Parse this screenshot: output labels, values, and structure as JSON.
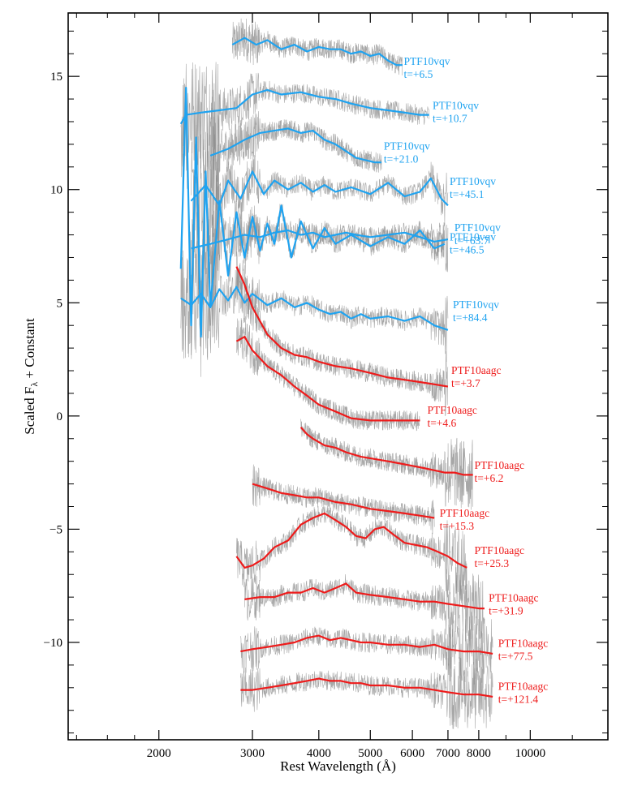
{
  "colors": {
    "blue": "#1fa3f0",
    "red": "#ee1b1b",
    "raw": "#8a8a8a",
    "axes": "#000000"
  },
  "chart_data": {
    "type": "line",
    "title": "",
    "xlabel": "Rest Wavelength (Å)",
    "ylabel": "Scaled F",
    "ylabel_subscript": "λ",
    "ylabel_suffix": " + Constant",
    "xscale": "log",
    "xlim": [
      1350,
      14000
    ],
    "ylim": [
      -14.3,
      17.8
    ],
    "grid": false,
    "legend": "none",
    "x_ticks_major": [
      {
        "value": 2000,
        "label": "2000"
      },
      {
        "value": 3000,
        "label": "3000"
      },
      {
        "value": 4000,
        "label": "4000"
      },
      {
        "value": 5000,
        "label": "5000"
      },
      {
        "value": 6000,
        "label": "6000"
      },
      {
        "value": 7000,
        "label": "7000"
      },
      {
        "value": 8000,
        "label": "8000"
      },
      {
        "value": 10000,
        "label": "10000"
      }
    ],
    "x_ticks_minor": [
      1400,
      1600,
      1800,
      9000,
      12000,
      14000
    ],
    "y_ticks_major": [
      {
        "value": -10,
        "label": "−10"
      },
      {
        "value": -5,
        "label": "−5"
      },
      {
        "value": 0,
        "label": "0"
      },
      {
        "value": 5,
        "label": "5"
      },
      {
        "value": 10,
        "label": "10"
      },
      {
        "value": 15,
        "label": "15"
      }
    ],
    "y_minor_step": 1,
    "series": [
      {
        "color_key": "blue",
        "label_name": "PTF10vqv",
        "label_epoch": "t=+6.5",
        "label_at": [
          5780,
          15.4
        ],
        "x": [
          2750,
          2900,
          3050,
          3200,
          3400,
          3600,
          3800,
          4000,
          4200,
          4400,
          4600,
          4800,
          5000,
          5200,
          5400,
          5600,
          5750
        ],
        "y": [
          16.4,
          16.7,
          16.4,
          16.6,
          16.2,
          16.4,
          16.1,
          16.3,
          16.2,
          16.2,
          16.0,
          16.1,
          15.9,
          16.0,
          15.7,
          15.5,
          15.5
        ]
      },
      {
        "color_key": "blue",
        "label_name": "PTF10vqv",
        "label_epoch": "t=+10.7",
        "label_at": [
          6550,
          13.45
        ],
        "x": [
          2200,
          2250,
          2400,
          2600,
          2800,
          3000,
          3200,
          3400,
          3700,
          4000,
          4300,
          4600,
          5000,
          5400,
          5800,
          6200,
          6450
        ],
        "y": [
          12.9,
          13.3,
          13.4,
          13.5,
          13.6,
          14.2,
          14.4,
          14.2,
          14.3,
          14.1,
          14.0,
          13.8,
          13.6,
          13.5,
          13.4,
          13.3,
          13.3
        ]
      },
      {
        "color_key": "blue",
        "label_name": "PTF10vqv",
        "label_epoch": "t=+21.0",
        "label_at": [
          5300,
          11.65
        ],
        "x": [
          2500,
          2700,
          2900,
          3100,
          3300,
          3500,
          3700,
          3900,
          4100,
          4300,
          4500,
          4700,
          4900,
          5100,
          5250
        ],
        "y": [
          11.5,
          11.8,
          12.2,
          12.5,
          12.6,
          12.7,
          12.5,
          12.6,
          12.2,
          12.0,
          11.7,
          11.4,
          11.3,
          11.2,
          11.2
        ]
      },
      {
        "color_key": "blue",
        "label_name": "PTF10vqv",
        "label_epoch": "t=+45.1",
        "label_at": [
          7050,
          10.1
        ],
        "x": [
          2300,
          2450,
          2600,
          2700,
          2850,
          3000,
          3150,
          3300,
          3500,
          3700,
          3900,
          4100,
          4300,
          4600,
          5000,
          5400,
          5800,
          6200,
          6500,
          6800,
          7000
        ],
        "y": [
          9.5,
          10.2,
          9.3,
          10.4,
          9.6,
          10.8,
          9.8,
          10.4,
          10.0,
          10.3,
          9.9,
          10.2,
          9.9,
          10.1,
          9.8,
          10.3,
          9.7,
          9.9,
          10.5,
          9.6,
          9.3
        ]
      },
      {
        "color_key": "blue",
        "label_name": "PTF10vqv",
        "label_epoch": "t=+63.7",
        "label_at": [
          7200,
          8.05
        ],
        "x": [
          2300,
          2500,
          2700,
          2900,
          3100,
          3300,
          3500,
          3700,
          3900,
          4100,
          4300,
          4500,
          4700,
          5000,
          5400,
          5800,
          6200,
          6600,
          7000
        ],
        "y": [
          7.4,
          7.6,
          7.8,
          8.0,
          7.9,
          8.1,
          8.2,
          8.0,
          8.1,
          7.9,
          8.0,
          8.1,
          8.0,
          7.9,
          8.0,
          8.1,
          7.9,
          7.7,
          7.8
        ]
      },
      {
        "color_key": "blue",
        "label_name": "PTF10vqv",
        "label_epoch": "t=+46.5",
        "label_at": [
          7050,
          7.65
        ],
        "x": [
          2200,
          2250,
          2300,
          2350,
          2400,
          2450,
          2500,
          2600,
          2700,
          2800,
          2900,
          3000,
          3100,
          3200,
          3300,
          3400,
          3550,
          3700,
          3900,
          4100,
          4300,
          4600,
          5000,
          5400,
          5800,
          6200,
          6600,
          6900
        ],
        "y": [
          6.5,
          14.5,
          4.0,
          12.3,
          3.5,
          10.8,
          4.8,
          9.5,
          6.2,
          9.0,
          7.0,
          8.8,
          7.3,
          8.5,
          7.6,
          9.3,
          7.0,
          8.6,
          7.4,
          8.3,
          7.6,
          8.0,
          7.5,
          7.9,
          7.6,
          8.2,
          7.4,
          7.6
        ]
      },
      {
        "color_key": "blue",
        "label_name": "PTF10vqv",
        "label_epoch": "t=+84.4",
        "label_at": [
          7150,
          4.65
        ],
        "x": [
          2200,
          2300,
          2400,
          2500,
          2600,
          2700,
          2800,
          2900,
          3000,
          3200,
          3400,
          3600,
          3800,
          4000,
          4200,
          4400,
          4600,
          4800,
          5000,
          5400,
          5800,
          6200,
          6600,
          7000
        ],
        "y": [
          5.2,
          4.9,
          5.4,
          4.8,
          5.6,
          5.1,
          5.7,
          5.0,
          5.4,
          4.9,
          5.2,
          4.8,
          5.0,
          4.7,
          4.5,
          4.6,
          4.3,
          4.5,
          4.3,
          4.4,
          4.2,
          4.4,
          4.0,
          3.8
        ]
      },
      {
        "color_key": "red",
        "label_name": "PTF10aagc",
        "label_epoch": "t=+3.7",
        "label_at": [
          7100,
          1.75
        ],
        "x": [
          2800,
          2900,
          3000,
          3200,
          3400,
          3600,
          3800,
          4000,
          4300,
          4600,
          5000,
          5400,
          5800,
          6200,
          6600,
          7000
        ],
        "y": [
          6.6,
          5.8,
          4.8,
          3.6,
          3.0,
          2.7,
          2.6,
          2.4,
          2.2,
          2.1,
          1.9,
          1.7,
          1.6,
          1.5,
          1.4,
          1.3
        ]
      },
      {
        "color_key": "red",
        "label_name": "PTF10aagc",
        "label_epoch": "t=+4.6",
        "label_at": [
          6400,
          0.0
        ],
        "x": [
          2800,
          2900,
          3000,
          3200,
          3400,
          3600,
          3800,
          4000,
          4300,
          4600,
          5000,
          5400,
          5800,
          6200
        ],
        "y": [
          3.3,
          3.5,
          2.9,
          2.2,
          1.8,
          1.3,
          0.9,
          0.5,
          0.2,
          -0.1,
          -0.2,
          -0.2,
          -0.2,
          -0.2
        ]
      },
      {
        "color_key": "red",
        "label_name": "PTF10aagc",
        "label_epoch": "t=+6.2",
        "label_at": [
          7850,
          -2.45
        ],
        "x": [
          3700,
          3800,
          3900,
          4100,
          4300,
          4500,
          4800,
          5100,
          5400,
          5700,
          6000,
          6300,
          6600,
          6900,
          7200,
          7500,
          7800
        ],
        "y": [
          -0.5,
          -0.8,
          -1.0,
          -1.3,
          -1.4,
          -1.6,
          -1.8,
          -1.9,
          -2.0,
          -2.1,
          -2.2,
          -2.3,
          -2.4,
          -2.5,
          -2.5,
          -2.6,
          -2.6
        ]
      },
      {
        "color_key": "red",
        "label_name": "PTF10aagc",
        "label_epoch": "t=+15.3",
        "label_at": [
          6750,
          -4.55
        ],
        "x": [
          3000,
          3200,
          3400,
          3600,
          3800,
          4000,
          4300,
          4600,
          5000,
          5400,
          5800,
          6200,
          6600
        ],
        "y": [
          -3.0,
          -3.2,
          -3.4,
          -3.5,
          -3.6,
          -3.6,
          -3.8,
          -3.9,
          -4.1,
          -4.2,
          -4.3,
          -4.4,
          -4.5
        ]
      },
      {
        "color_key": "red",
        "label_name": "PTF10aagc",
        "label_epoch": "t=+25.3",
        "label_at": [
          7850,
          -6.2
        ],
        "x": [
          2800,
          2900,
          3000,
          3150,
          3300,
          3500,
          3700,
          3900,
          4100,
          4300,
          4500,
          4700,
          4900,
          5100,
          5300,
          5500,
          5800,
          6100,
          6400,
          6700,
          7000,
          7300,
          7600
        ],
        "y": [
          -6.2,
          -6.7,
          -6.6,
          -6.3,
          -5.8,
          -5.5,
          -4.8,
          -4.5,
          -4.3,
          -4.6,
          -4.9,
          -5.3,
          -5.4,
          -5.0,
          -4.9,
          -5.2,
          -5.6,
          -5.7,
          -5.8,
          -6.0,
          -6.2,
          -6.5,
          -6.7
        ]
      },
      {
        "color_key": "red",
        "label_name": "PTF10aagc",
        "label_epoch": "t=+31.9",
        "label_at": [
          8350,
          -8.3
        ],
        "x": [
          2900,
          3100,
          3300,
          3500,
          3700,
          3900,
          4100,
          4300,
          4500,
          4700,
          5000,
          5400,
          5800,
          6200,
          6600,
          7000,
          7500,
          8000,
          8200
        ],
        "y": [
          -8.1,
          -8.0,
          -8.0,
          -7.8,
          -7.8,
          -7.6,
          -7.8,
          -7.6,
          -7.4,
          -7.8,
          -7.9,
          -8.0,
          -8.1,
          -8.2,
          -8.2,
          -8.3,
          -8.4,
          -8.5,
          -8.5
        ]
      },
      {
        "color_key": "red",
        "label_name": "PTF10aagc",
        "label_epoch": "t=+77.5",
        "label_at": [
          8700,
          -10.3
        ],
        "x": [
          2850,
          3000,
          3200,
          3400,
          3600,
          3800,
          4000,
          4200,
          4400,
          4600,
          4800,
          5000,
          5400,
          5800,
          6200,
          6600,
          7000,
          7500,
          8000,
          8500
        ],
        "y": [
          -10.4,
          -10.3,
          -10.2,
          -10.1,
          -10.0,
          -9.8,
          -9.7,
          -9.9,
          -9.8,
          -9.9,
          -10.0,
          -10.0,
          -10.1,
          -10.1,
          -10.2,
          -10.1,
          -10.3,
          -10.4,
          -10.4,
          -10.5
        ]
      },
      {
        "color_key": "red",
        "label_name": "PTF10aagc",
        "label_epoch": "t=+121.4",
        "label_at": [
          8700,
          -12.2
        ],
        "x": [
          2850,
          3000,
          3200,
          3400,
          3600,
          3800,
          4000,
          4200,
          4400,
          4600,
          4800,
          5000,
          5400,
          5800,
          6200,
          6600,
          7000,
          7500,
          8000,
          8500
        ],
        "y": [
          -12.1,
          -12.1,
          -12.0,
          -11.9,
          -11.8,
          -11.7,
          -11.6,
          -11.7,
          -11.7,
          -11.8,
          -11.8,
          -11.9,
          -11.9,
          -12.0,
          -12.0,
          -12.1,
          -12.2,
          -12.3,
          -12.3,
          -12.4
        ]
      }
    ]
  }
}
